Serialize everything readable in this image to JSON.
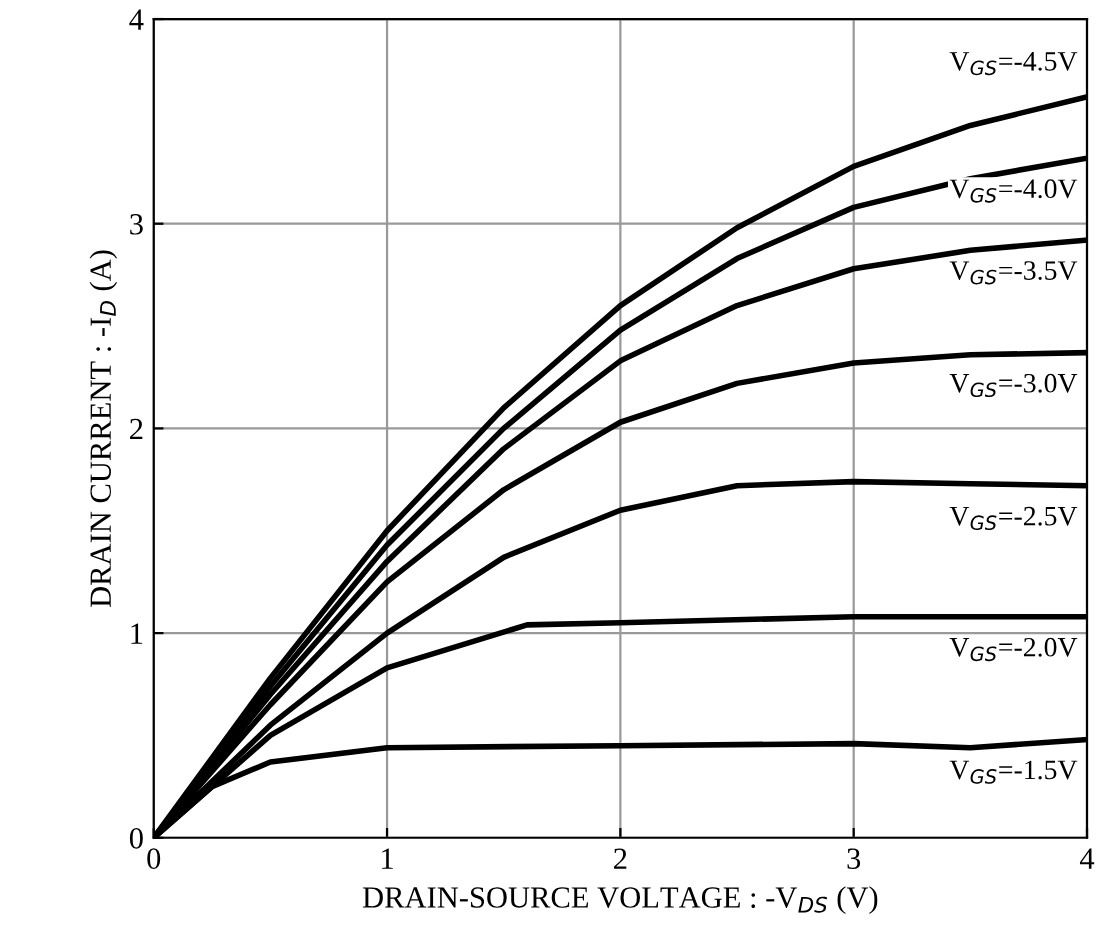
{
  "chart_data": {
    "type": "line",
    "xlabel": "DRAIN-SOURCE VOLTAGE : -V$_{DS}$ (V)",
    "ylabel": "DRAIN CURRENT : -I$_{D}$ (A)",
    "xlim": [
      0,
      4
    ],
    "ylim": [
      0,
      4
    ],
    "xticks": [
      0,
      1,
      2,
      3,
      4
    ],
    "yticks": [
      0,
      1,
      2,
      3,
      4
    ],
    "grid": true,
    "marker": "none",
    "line_style": "solid",
    "series": [
      {
        "name": "V$_{GS}$=-4.5V",
        "color": "#000000",
        "x": [
          0,
          0.5,
          1,
          1.5,
          2,
          2.5,
          3,
          3.5,
          4
        ],
        "values": [
          0,
          0.78,
          1.5,
          2.1,
          2.6,
          2.98,
          3.28,
          3.48,
          3.62
        ]
      },
      {
        "name": "V$_{GS}$=-4.0V",
        "color": "#000000",
        "x": [
          0,
          0.5,
          1,
          1.5,
          2,
          2.5,
          3,
          3.5,
          4
        ],
        "values": [
          0,
          0.74,
          1.43,
          2.0,
          2.48,
          2.83,
          3.08,
          3.22,
          3.32
        ]
      },
      {
        "name": "V$_{GS}$=-3.5V",
        "color": "#000000",
        "x": [
          0,
          0.5,
          1,
          1.5,
          2,
          2.5,
          3,
          3.5,
          4
        ],
        "values": [
          0,
          0.7,
          1.35,
          1.9,
          2.33,
          2.6,
          2.78,
          2.87,
          2.92
        ]
      },
      {
        "name": "V$_{GS}$=-3.0V",
        "color": "#000000",
        "x": [
          0,
          0.5,
          1,
          1.5,
          2,
          2.5,
          3,
          3.5,
          4
        ],
        "values": [
          0,
          0.65,
          1.25,
          1.7,
          2.03,
          2.22,
          2.32,
          2.36,
          2.37
        ]
      },
      {
        "name": "V$_{GS}$=-2.5V",
        "color": "#000000",
        "x": [
          0,
          0.5,
          1,
          1.5,
          2,
          2.5,
          3,
          3.5,
          4
        ],
        "values": [
          0,
          0.55,
          1.0,
          1.37,
          1.6,
          1.72,
          1.74,
          1.73,
          1.72
        ]
      },
      {
        "name": "V$_{GS}$=-2.0V",
        "color": "#000000",
        "x": [
          0,
          0.5,
          1,
          1.6,
          2,
          3,
          4
        ],
        "values": [
          0,
          0.5,
          0.83,
          1.04,
          1.05,
          1.08,
          1.08
        ]
      },
      {
        "name": "V$_{GS}$=-1.5V",
        "color": "#000000",
        "x": [
          0,
          0.25,
          0.5,
          1,
          2,
          3,
          3.5,
          4
        ],
        "values": [
          0,
          0.25,
          0.37,
          0.44,
          0.45,
          0.46,
          0.44,
          0.48
        ]
      }
    ]
  }
}
